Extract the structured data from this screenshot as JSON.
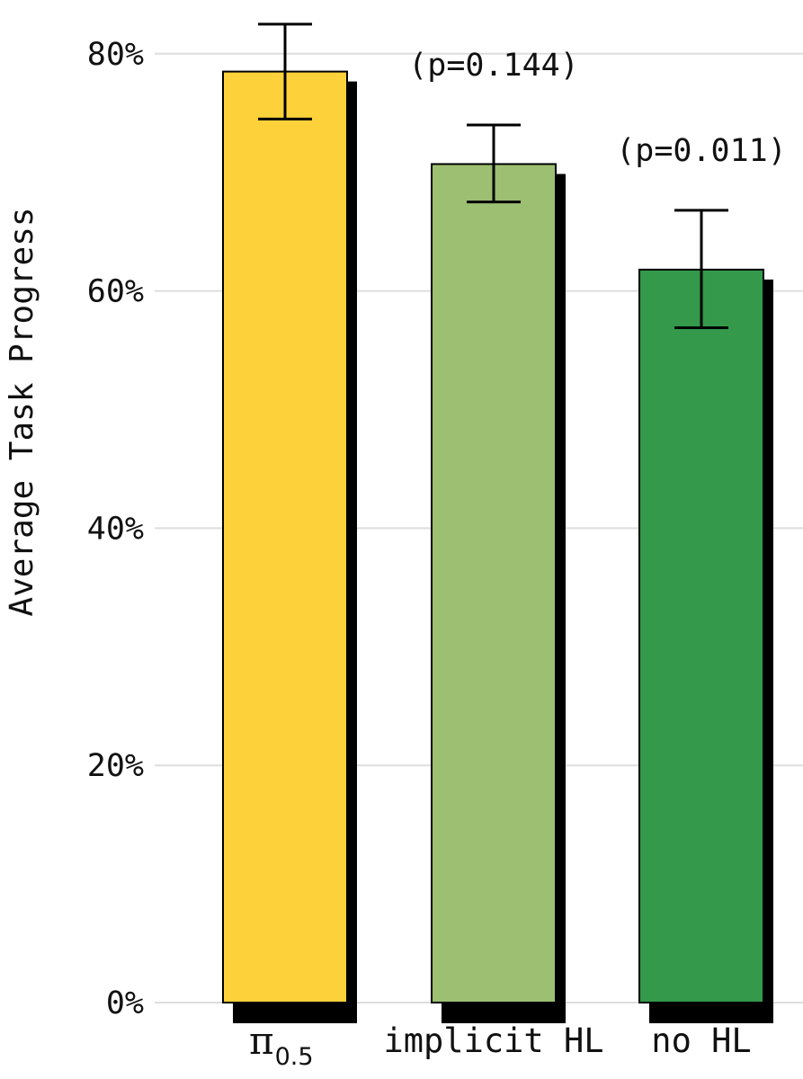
{
  "chart_data": {
    "type": "bar",
    "ylabel": "Average Task Progress",
    "xlabel": "",
    "ylim": [
      0,
      80
    ],
    "y_ticks": [
      0,
      20,
      40,
      60,
      80
    ],
    "y_tick_labels": [
      "0%",
      "20%",
      "40%",
      "60%",
      "80%"
    ],
    "grid": "horizontal",
    "categories": [
      "π0.5",
      "implicit HL",
      "no HL"
    ],
    "category_display": {
      "pi_base": "π",
      "pi_sub": "0.5",
      "implicit": "implicit HL",
      "nohl": "no HL"
    },
    "values": [
      78.5,
      70.7,
      61.8
    ],
    "error_low": [
      74.5,
      67.5,
      56.9
    ],
    "error_high": [
      82.5,
      74.0,
      66.8
    ],
    "annotations": [
      {
        "category": "implicit HL",
        "text": "(p=0.144)"
      },
      {
        "category": "no HL",
        "text": "(p=0.011)"
      }
    ],
    "colors": [
      "#fdd13a",
      "#9dbf72",
      "#34994b"
    ],
    "shadow_color": "#000000",
    "grid_color": "#dddddd"
  }
}
